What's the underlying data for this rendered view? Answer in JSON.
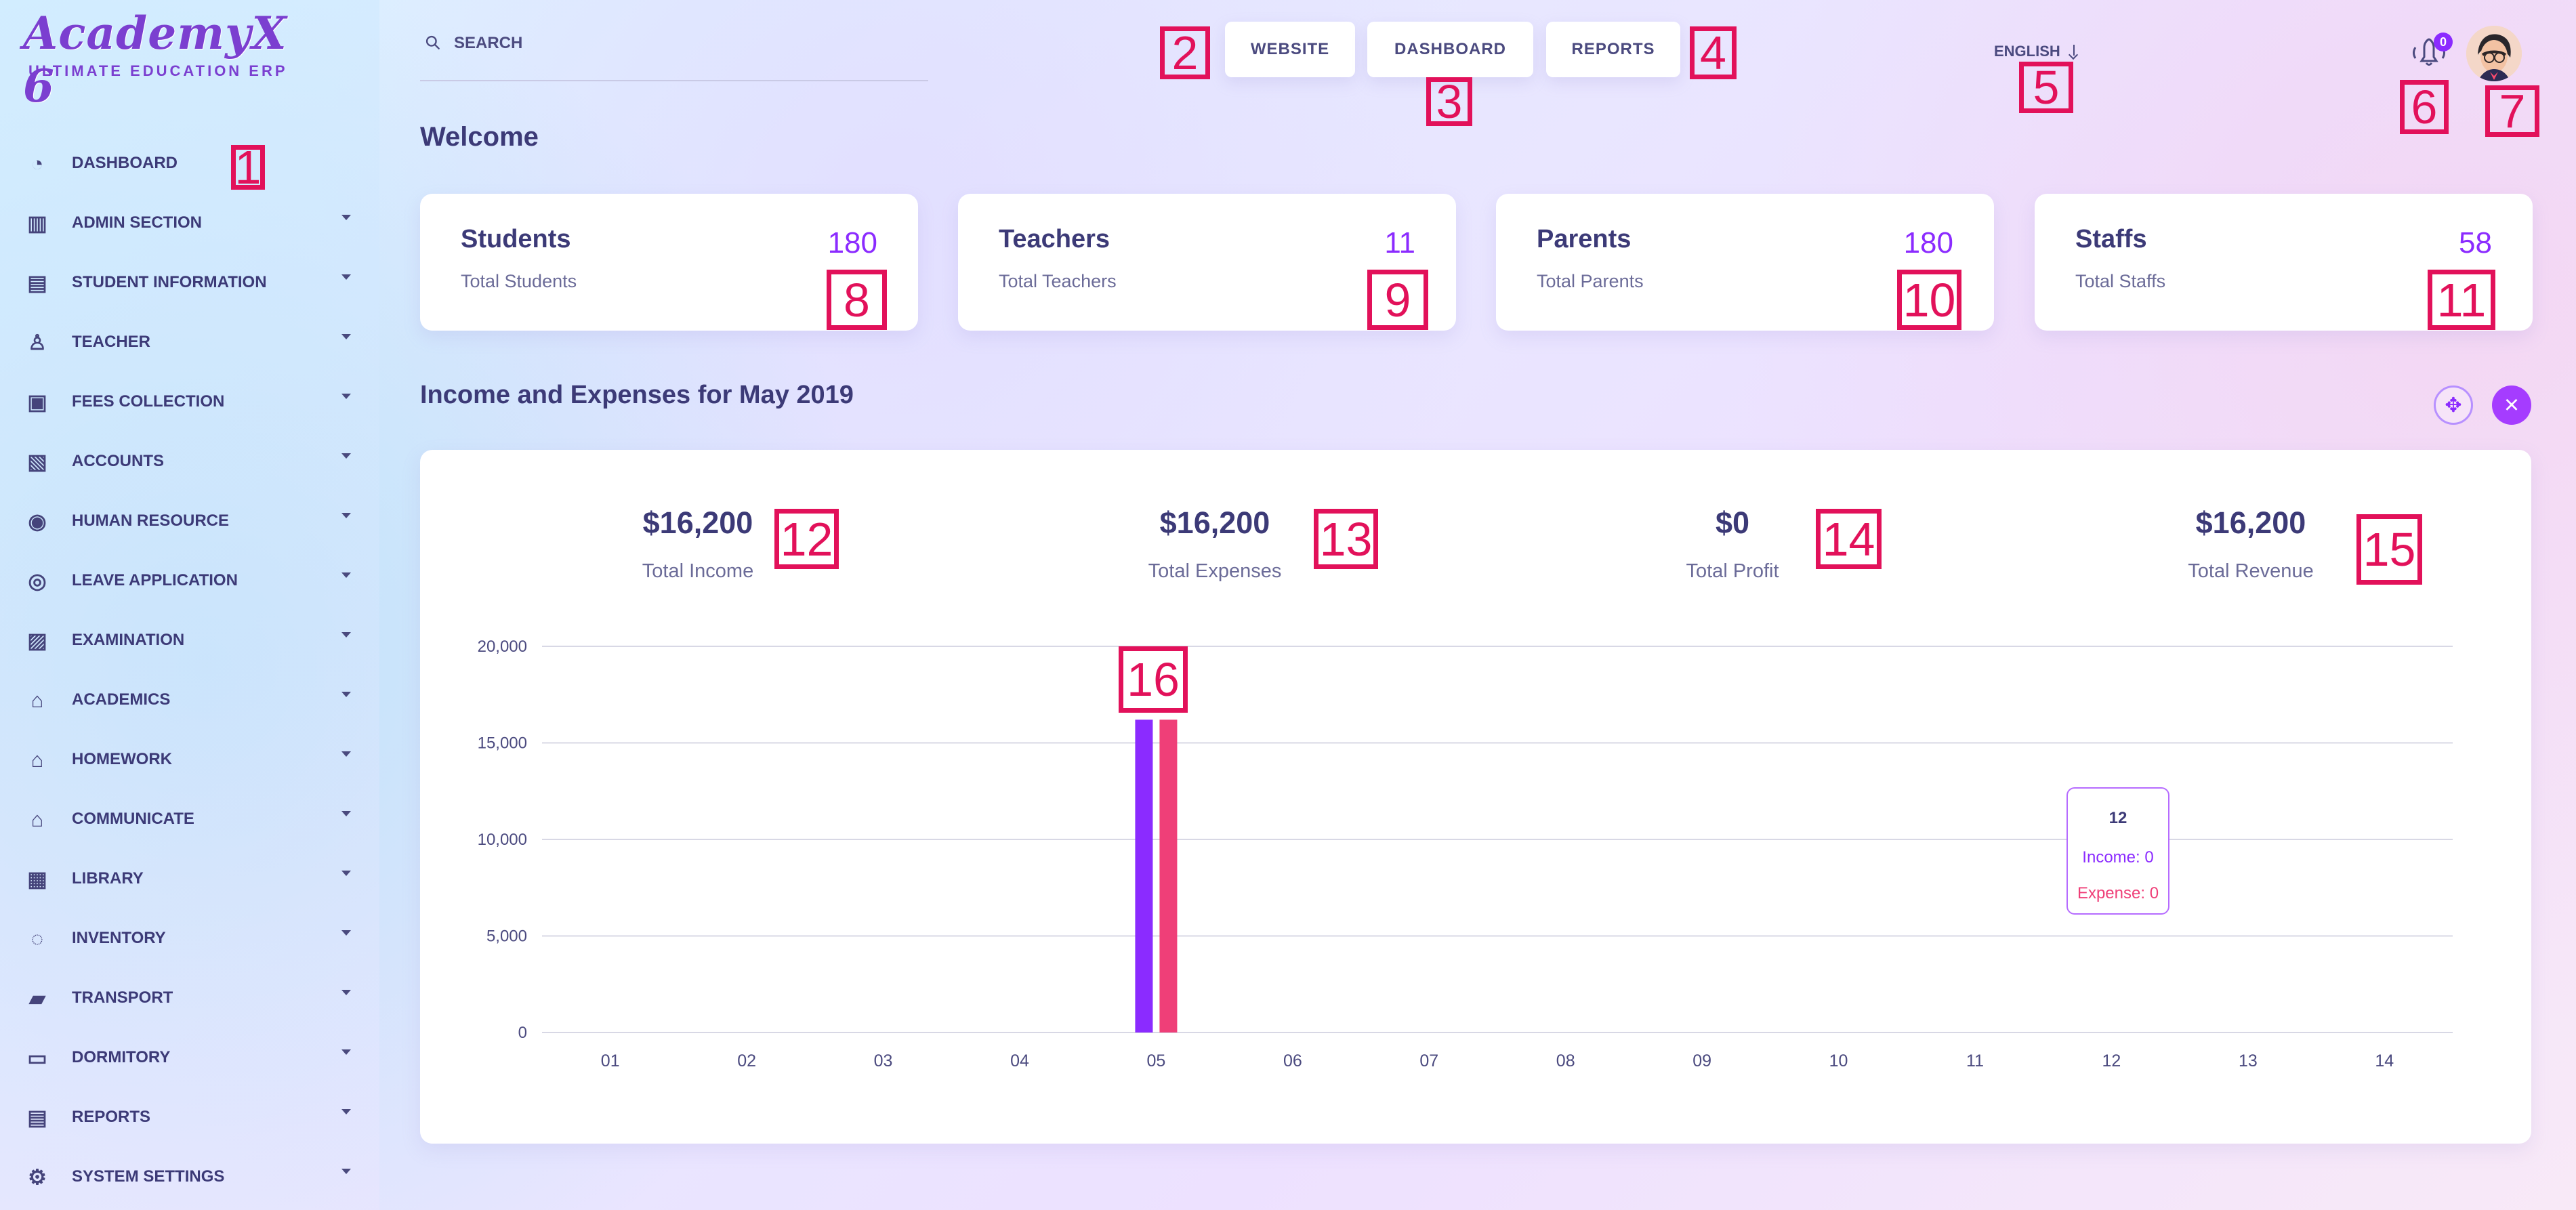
{
  "brand": {
    "title": "AcademyX 6",
    "subtitle": "ULTIMATE EDUCATION ERP"
  },
  "sidebar": {
    "items": [
      {
        "label": "DASHBOARD",
        "icon": "dashboard-icon",
        "has_dropdown": false
      },
      {
        "label": "ADMIN SECTION",
        "icon": "admin-section-icon",
        "has_dropdown": true
      },
      {
        "label": "STUDENT INFORMATION",
        "icon": "student-information-icon",
        "has_dropdown": true
      },
      {
        "label": "TEACHER",
        "icon": "teacher-icon",
        "has_dropdown": true
      },
      {
        "label": "FEES COLLECTION",
        "icon": "fees-collection-icon",
        "has_dropdown": true
      },
      {
        "label": "ACCOUNTS",
        "icon": "accounts-icon",
        "has_dropdown": true
      },
      {
        "label": "HUMAN RESOURCE",
        "icon": "human-resource-icon",
        "has_dropdown": true
      },
      {
        "label": "LEAVE APPLICATION",
        "icon": "leave-application-icon",
        "has_dropdown": true
      },
      {
        "label": "EXAMINATION",
        "icon": "examination-icon",
        "has_dropdown": true
      },
      {
        "label": "ACADEMICS",
        "icon": "academics-icon",
        "has_dropdown": true
      },
      {
        "label": "HOMEWORK",
        "icon": "homework-icon",
        "has_dropdown": true
      },
      {
        "label": "COMMUNICATE",
        "icon": "communicate-icon",
        "has_dropdown": true
      },
      {
        "label": "LIBRARY",
        "icon": "library-icon",
        "has_dropdown": true
      },
      {
        "label": "INVENTORY",
        "icon": "inventory-icon",
        "has_dropdown": true
      },
      {
        "label": "TRANSPORT",
        "icon": "transport-icon",
        "has_dropdown": true
      },
      {
        "label": "DORMITORY",
        "icon": "dormitory-icon",
        "has_dropdown": true
      },
      {
        "label": "REPORTS",
        "icon": "reports-icon",
        "has_dropdown": true
      },
      {
        "label": "SYSTEM SETTINGS",
        "icon": "system-settings-icon",
        "has_dropdown": true
      }
    ]
  },
  "header": {
    "search_placeholder": "SEARCH",
    "buttons": {
      "website": "WEBSITE",
      "dashboard": "DASHBOARD",
      "reports": "REPORTS"
    },
    "language": "ENGLISH",
    "notification_count": "0"
  },
  "annotations": {
    "n1": "1",
    "n2": "2",
    "n3": "3",
    "n4": "4",
    "n5": "5",
    "n6": "6",
    "n7": "7",
    "n8": "8",
    "n9": "9",
    "n10": "10",
    "n11": "11",
    "n12": "12",
    "n13": "13",
    "n14": "14",
    "n15": "15",
    "n16": "16"
  },
  "main": {
    "welcome": "Welcome",
    "cards": [
      {
        "title": "Students",
        "subtitle": "Total Students",
        "value": "180"
      },
      {
        "title": "Teachers",
        "subtitle": "Total Teachers",
        "value": "11"
      },
      {
        "title": "Parents",
        "subtitle": "Total Parents",
        "value": "180"
      },
      {
        "title": "Staffs",
        "subtitle": "Total Staffs",
        "value": "58"
      }
    ],
    "section_title": "Income and Expenses for May 2019",
    "summary": [
      {
        "value": "$16,200",
        "label": "Total Income"
      },
      {
        "value": "$16,200",
        "label": "Total Expenses"
      },
      {
        "value": "$0",
        "label": "Total Profit"
      },
      {
        "value": "$16,200",
        "label": "Total Revenue"
      }
    ],
    "tooltip": {
      "day": "12",
      "income": "Income: 0",
      "expense": "Expense: 0"
    }
  },
  "colors": {
    "accent": "#8b2bff",
    "income": "#8b2bff",
    "expense": "#ef3f78",
    "annotation": "#e2115a",
    "text": "#3c3a77"
  },
  "chart_data": {
    "type": "bar",
    "categories": [
      "01",
      "02",
      "03",
      "04",
      "05",
      "06",
      "07",
      "08",
      "09",
      "10",
      "11",
      "12",
      "13",
      "14"
    ],
    "series": [
      {
        "values": [
          0,
          0,
          0,
          0,
          16200,
          0,
          0,
          0,
          0,
          0,
          0,
          0,
          0,
          0
        ]
      },
      {
        "values": [
          0,
          0,
          0,
          0,
          16200,
          0,
          0,
          0,
          0,
          0,
          0,
          0,
          0,
          0
        ]
      }
    ],
    "ylim": [
      0,
      20000
    ],
    "y_ticks": [
      "0",
      "5,000",
      "10,000",
      "15,000",
      "20,000"
    ],
    "grid": true
  }
}
